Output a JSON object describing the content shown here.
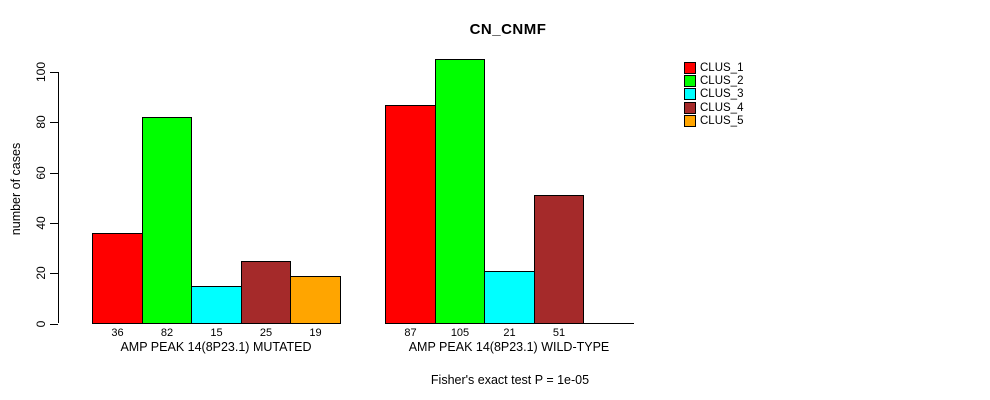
{
  "title": "CN_CNMF",
  "y_axis": {
    "label": "number of cases",
    "ticks": [
      0,
      20,
      40,
      60,
      80,
      100
    ]
  },
  "footer": "Fisher's exact test P = 1e-05",
  "legend": {
    "items": [
      {
        "label": "CLUS_1",
        "color": "#FF0000"
      },
      {
        "label": "CLUS_2",
        "color": "#00FF00"
      },
      {
        "label": "CLUS_3",
        "color": "#00FFFF"
      },
      {
        "label": "CLUS_4",
        "color": "#A52A2A"
      },
      {
        "label": "CLUS_5",
        "color": "#FFA500"
      }
    ]
  },
  "chart_data": {
    "type": "bar",
    "title": "CN_CNMF",
    "ylabel": "number of cases",
    "ylim": [
      0,
      105
    ],
    "yticks": [
      0,
      20,
      40,
      60,
      80,
      100
    ],
    "grid": false,
    "legend_position": "right",
    "series": [
      {
        "name": "CLUS_1",
        "color": "#FF0000"
      },
      {
        "name": "CLUS_2",
        "color": "#00FF00"
      },
      {
        "name": "CLUS_3",
        "color": "#00FFFF"
      },
      {
        "name": "CLUS_4",
        "color": "#A52A2A"
      },
      {
        "name": "CLUS_5",
        "color": "#FFA500"
      }
    ],
    "groups": [
      {
        "label": "AMP PEAK 14(8P23.1) MUTATED",
        "values": [
          36,
          82,
          15,
          25,
          19
        ]
      },
      {
        "label": "AMP PEAK 14(8P23.1) WILD-TYPE",
        "values": [
          87,
          105,
          21,
          51,
          0
        ]
      }
    ],
    "bar_value_labels_shown": [
      [
        36,
        82,
        15,
        25,
        19
      ],
      [
        87,
        105,
        21,
        51
      ]
    ],
    "annotation": "Fisher's exact test P = 1e-05"
  }
}
